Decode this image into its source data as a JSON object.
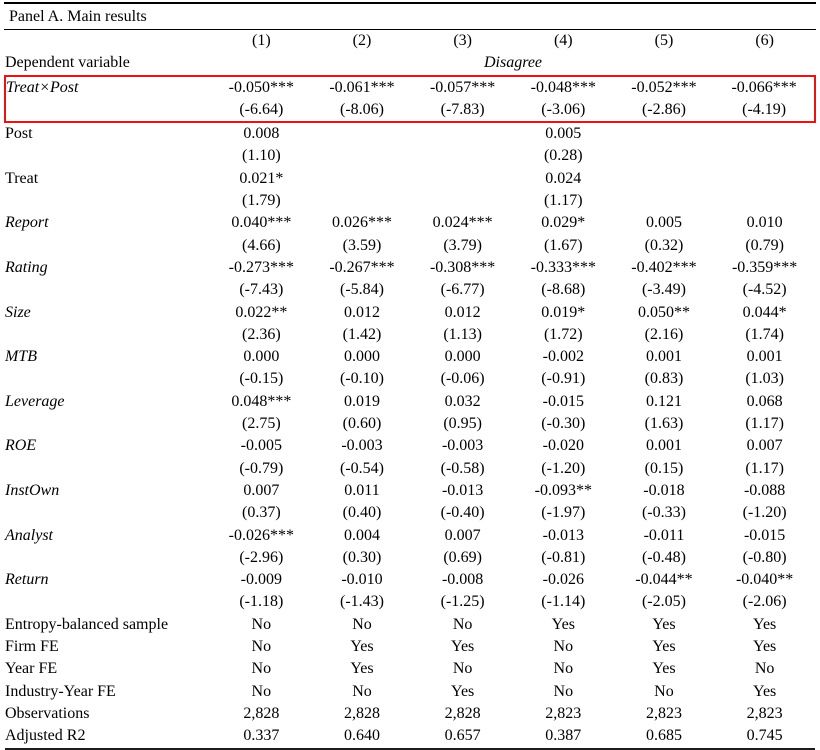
{
  "panel": {
    "title": "Panel A. Main results"
  },
  "highlight": {
    "color": "#ee1111",
    "target_row": "Treat×Post"
  },
  "table": {
    "column_headers": [
      "(1)",
      "(2)",
      "(3)",
      "(4)",
      "(5)",
      "(6)"
    ],
    "dependent_variable": {
      "label": "Dependent variable",
      "value": "Disagree"
    },
    "coef_rows": [
      {
        "label": "Treat×Post",
        "italic": true,
        "highlight": true,
        "coefs": [
          "-0.050***",
          "-0.061***",
          "-0.057***",
          "-0.048***",
          "-0.052***",
          "-0.066***"
        ],
        "tstats": [
          "(-6.64)",
          "(-8.06)",
          "(-7.83)",
          "(-3.06)",
          "(-2.86)",
          "(-4.19)"
        ]
      },
      {
        "label": "Post",
        "italic": false,
        "highlight": false,
        "coefs": [
          "0.008",
          "",
          "",
          "0.005",
          "",
          ""
        ],
        "tstats": [
          "(1.10)",
          "",
          "",
          "(0.28)",
          "",
          ""
        ]
      },
      {
        "label": "Treat",
        "italic": false,
        "highlight": false,
        "coefs": [
          "0.021*",
          "",
          "",
          "0.024",
          "",
          ""
        ],
        "tstats": [
          "(1.79)",
          "",
          "",
          "(1.17)",
          "",
          ""
        ]
      },
      {
        "label": "Report",
        "italic": true,
        "highlight": false,
        "coefs": [
          "0.040***",
          "0.026***",
          "0.024***",
          "0.029*",
          "0.005",
          "0.010"
        ],
        "tstats": [
          "(4.66)",
          "(3.59)",
          "(3.79)",
          "(1.67)",
          "(0.32)",
          "(0.79)"
        ]
      },
      {
        "label": "Rating",
        "italic": true,
        "highlight": false,
        "coefs": [
          "-0.273***",
          "-0.267***",
          "-0.308***",
          "-0.333***",
          "-0.402***",
          "-0.359***"
        ],
        "tstats": [
          "(-7.43)",
          "(-5.84)",
          "(-6.77)",
          "(-8.68)",
          "(-3.49)",
          "(-4.52)"
        ]
      },
      {
        "label": "Size",
        "italic": true,
        "highlight": false,
        "coefs": [
          "0.022**",
          "0.012",
          "0.012",
          "0.019*",
          "0.050**",
          "0.044*"
        ],
        "tstats": [
          "(2.36)",
          "(1.42)",
          "(1.13)",
          "(1.72)",
          "(2.16)",
          "(1.74)"
        ]
      },
      {
        "label": "MTB",
        "italic": true,
        "highlight": false,
        "coefs": [
          "0.000",
          "0.000",
          "0.000",
          "-0.002",
          "0.001",
          "0.001"
        ],
        "tstats": [
          "(-0.15)",
          "(-0.10)",
          "(-0.06)",
          "(-0.91)",
          "(0.83)",
          "(1.03)"
        ]
      },
      {
        "label": "Leverage",
        "italic": true,
        "highlight": false,
        "coefs": [
          "0.048***",
          "0.019",
          "0.032",
          "-0.015",
          "0.121",
          "0.068"
        ],
        "tstats": [
          "(2.75)",
          "(0.60)",
          "(0.95)",
          "(-0.30)",
          "(1.63)",
          "(1.17)"
        ]
      },
      {
        "label": "ROE",
        "italic": true,
        "highlight": false,
        "coefs": [
          "-0.005",
          "-0.003",
          "-0.003",
          "-0.020",
          "0.001",
          "0.007"
        ],
        "tstats": [
          "(-0.79)",
          "(-0.54)",
          "(-0.58)",
          "(-1.20)",
          "(0.15)",
          "(1.17)"
        ]
      },
      {
        "label": "InstOwn",
        "italic": true,
        "highlight": false,
        "coefs": [
          "0.007",
          "0.011",
          "-0.013",
          "-0.093**",
          "-0.018",
          "-0.088"
        ],
        "tstats": [
          "(0.37)",
          "(0.40)",
          "(-0.40)",
          "(-1.97)",
          "(-0.33)",
          "(-1.20)"
        ]
      },
      {
        "label": "Analyst",
        "italic": true,
        "highlight": false,
        "coefs": [
          "-0.026***",
          "0.004",
          "0.007",
          "-0.013",
          "-0.011",
          "-0.015"
        ],
        "tstats": [
          "(-2.96)",
          "(0.30)",
          "(0.69)",
          "(-0.81)",
          "(-0.48)",
          "(-0.80)"
        ]
      },
      {
        "label": "Return",
        "italic": true,
        "highlight": false,
        "coefs": [
          "-0.009",
          "-0.010",
          "-0.008",
          "-0.026",
          "-0.044**",
          "-0.040**"
        ],
        "tstats": [
          "(-1.18)",
          "(-1.43)",
          "(-1.25)",
          "(-1.14)",
          "(-2.05)",
          "(-2.06)"
        ]
      }
    ],
    "info_rows": [
      {
        "label": "Entropy-balanced sample",
        "values": [
          "No",
          "No",
          "No",
          "Yes",
          "Yes",
          "Yes"
        ]
      },
      {
        "label": "Firm FE",
        "values": [
          "No",
          "Yes",
          "Yes",
          "No",
          "Yes",
          "Yes"
        ]
      },
      {
        "label": "Year FE",
        "values": [
          "No",
          "Yes",
          "No",
          "No",
          "Yes",
          "No"
        ]
      },
      {
        "label": "Industry-Year FE",
        "values": [
          "No",
          "No",
          "Yes",
          "No",
          "No",
          "Yes"
        ]
      },
      {
        "label": "Observations",
        "values": [
          "2,828",
          "2,828",
          "2,828",
          "2,823",
          "2,823",
          "2,823"
        ]
      },
      {
        "label": "Adjusted R2",
        "values": [
          "0.337",
          "0.640",
          "0.657",
          "0.387",
          "0.685",
          "0.745"
        ]
      }
    ]
  }
}
